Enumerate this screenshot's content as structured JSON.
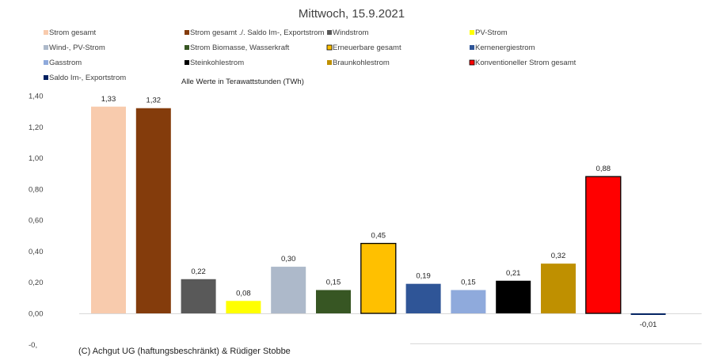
{
  "chart_data": {
    "type": "bar",
    "title": "Mittwoch, 15.9.2021",
    "note": "Alle Werte in Terawattstunden (TWh)",
    "credit": "(C) Achgut UG (haftungsbeschränkt) & Rüdiger Stobbe",
    "ylim": [
      -0.2,
      1.4
    ],
    "yticks": [
      "1,40",
      "1,20",
      "1,00",
      "0,80",
      "0,60",
      "0,40",
      "0,20",
      "0,00",
      "-0,"
    ],
    "grid": false,
    "legend_position": "top",
    "categories": [
      "Strom gesamt",
      "Strom gesamt ./. Saldo Im-, Exportstrom",
      "Windstrom",
      "PV-Strom",
      "Wind-, PV-Strom",
      "Strom Biomasse, Wasserkraft",
      "Erneuerbare gesamt",
      "Kernenergiestrom",
      "Gasstrom",
      "Steinkohlestrom",
      "Braunkohlestrom",
      "Konventioneller Strom gesamt",
      "Saldo Im-, Exportstrom"
    ],
    "values": [
      1.33,
      1.32,
      0.22,
      0.08,
      0.3,
      0.15,
      0.45,
      0.19,
      0.15,
      0.21,
      0.32,
      0.88,
      -0.01
    ],
    "value_labels": [
      "1,33",
      "1,32",
      "0,22",
      "0,08",
      "0,30",
      "0,15",
      "0,45",
      "0,19",
      "0,15",
      "0,21",
      "0,32",
      "0,88",
      "-0,01"
    ],
    "colors": [
      "#F8CBAD",
      "#843C0C",
      "#595959",
      "#FFFF00",
      "#ADB9CA",
      "#375623",
      "#FFC000",
      "#2F5597",
      "#8FAADC",
      "#000000",
      "#BF9000",
      "#FF0000",
      "#002060"
    ],
    "bordered": [
      false,
      false,
      false,
      false,
      false,
      false,
      true,
      false,
      false,
      false,
      false,
      true,
      false
    ]
  }
}
